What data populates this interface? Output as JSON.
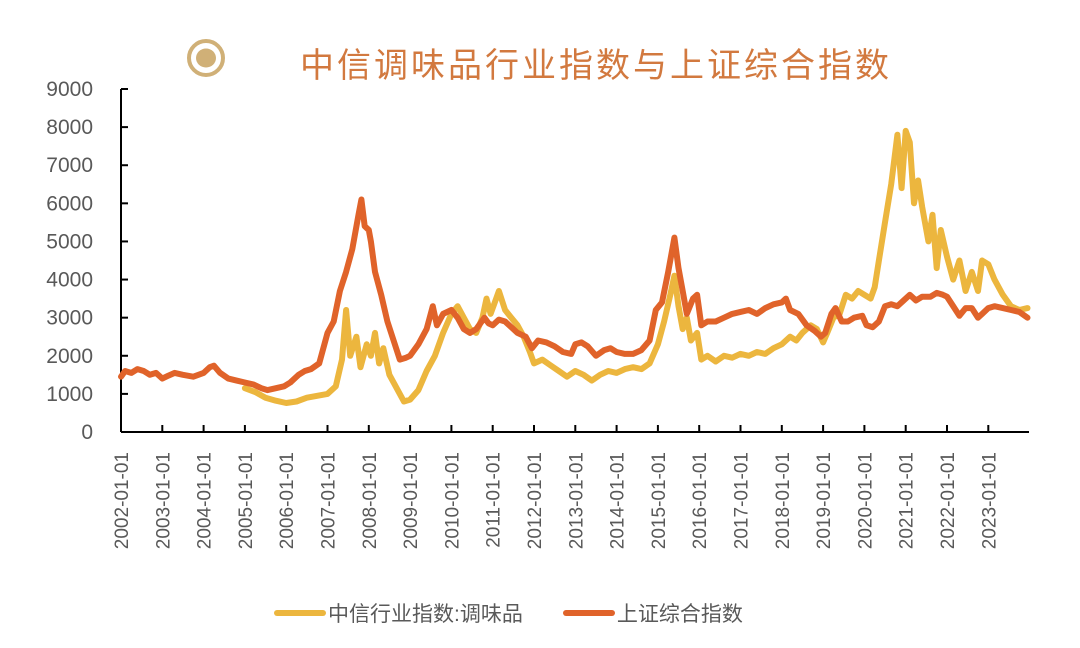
{
  "title": {
    "icon": "target-circle-icon",
    "text": "中信调味品行业指数与上证综合指数",
    "icon_color": "#d0b077",
    "text_color": "#d2793f"
  },
  "legend": {
    "items": [
      {
        "label": "中信行业指数:调味品",
        "color": "#ecb63e"
      },
      {
        "label": "上证综合指数",
        "color": "#e0632a"
      }
    ]
  },
  "chart_data": {
    "type": "line",
    "title": "中信调味品行业指数与上证综合指数",
    "xlabel": "",
    "ylabel": "",
    "ylim": [
      0,
      9000
    ],
    "yticks": [
      0,
      1000,
      2000,
      3000,
      4000,
      5000,
      6000,
      7000,
      8000,
      9000
    ],
    "xticks": [
      "2002-01-01",
      "2003-01-01",
      "2004-01-01",
      "2005-01-01",
      "2006-01-01",
      "2007-01-01",
      "2008-01-01",
      "2009-01-01",
      "2010-01-01",
      "2011-01-01",
      "2012-01-01",
      "2013-01-01",
      "2014-01-01",
      "2015-01-01",
      "2016-01-01",
      "2017-01-01",
      "2018-01-01",
      "2019-01-01",
      "2020-01-01",
      "2021-01-01",
      "2022-01-01",
      "2023-01-01"
    ],
    "xrange": [
      2002.0,
      2023.98
    ],
    "grid": false,
    "legend_position": "bottom",
    "series": [
      {
        "name": "中信行业指数:调味品",
        "color": "#ecb63e",
        "points": [
          [
            2005.0,
            1150
          ],
          [
            2005.25,
            1050
          ],
          [
            2005.5,
            900
          ],
          [
            2005.75,
            820
          ],
          [
            2006.0,
            760
          ],
          [
            2006.25,
            800
          ],
          [
            2006.5,
            900
          ],
          [
            2006.75,
            950
          ],
          [
            2007.0,
            1000
          ],
          [
            2007.2,
            1200
          ],
          [
            2007.35,
            1900
          ],
          [
            2007.45,
            3200
          ],
          [
            2007.55,
            2000
          ],
          [
            2007.7,
            2500
          ],
          [
            2007.8,
            1700
          ],
          [
            2007.95,
            2300
          ],
          [
            2008.05,
            2000
          ],
          [
            2008.15,
            2600
          ],
          [
            2008.25,
            1800
          ],
          [
            2008.35,
            2200
          ],
          [
            2008.5,
            1500
          ],
          [
            2008.7,
            1100
          ],
          [
            2008.85,
            800
          ],
          [
            2009.0,
            850
          ],
          [
            2009.2,
            1100
          ],
          [
            2009.4,
            1600
          ],
          [
            2009.6,
            2000
          ],
          [
            2009.8,
            2600
          ],
          [
            2010.0,
            3100
          ],
          [
            2010.15,
            3300
          ],
          [
            2010.3,
            3000
          ],
          [
            2010.45,
            2700
          ],
          [
            2010.6,
            2600
          ],
          [
            2010.75,
            3000
          ],
          [
            2010.85,
            3500
          ],
          [
            2010.95,
            3100
          ],
          [
            2011.05,
            3400
          ],
          [
            2011.15,
            3700
          ],
          [
            2011.3,
            3200
          ],
          [
            2011.45,
            3000
          ],
          [
            2011.6,
            2800
          ],
          [
            2011.75,
            2500
          ],
          [
            2011.9,
            2100
          ],
          [
            2012.0,
            1800
          ],
          [
            2012.2,
            1900
          ],
          [
            2012.4,
            1750
          ],
          [
            2012.6,
            1600
          ],
          [
            2012.8,
            1450
          ],
          [
            2013.0,
            1600
          ],
          [
            2013.2,
            1500
          ],
          [
            2013.4,
            1350
          ],
          [
            2013.6,
            1500
          ],
          [
            2013.8,
            1600
          ],
          [
            2014.0,
            1550
          ],
          [
            2014.2,
            1650
          ],
          [
            2014.4,
            1700
          ],
          [
            2014.6,
            1650
          ],
          [
            2014.8,
            1800
          ],
          [
            2015.0,
            2300
          ],
          [
            2015.15,
            2900
          ],
          [
            2015.3,
            3600
          ],
          [
            2015.4,
            4100
          ],
          [
            2015.5,
            3300
          ],
          [
            2015.6,
            2700
          ],
          [
            2015.7,
            3000
          ],
          [
            2015.8,
            2400
          ],
          [
            2015.95,
            2600
          ],
          [
            2016.05,
            1900
          ],
          [
            2016.2,
            2000
          ],
          [
            2016.4,
            1850
          ],
          [
            2016.6,
            2000
          ],
          [
            2016.8,
            1950
          ],
          [
            2017.0,
            2050
          ],
          [
            2017.2,
            2000
          ],
          [
            2017.4,
            2100
          ],
          [
            2017.6,
            2050
          ],
          [
            2017.8,
            2200
          ],
          [
            2018.0,
            2300
          ],
          [
            2018.2,
            2500
          ],
          [
            2018.35,
            2400
          ],
          [
            2018.5,
            2600
          ],
          [
            2018.7,
            2800
          ],
          [
            2018.85,
            2700
          ],
          [
            2019.0,
            2350
          ],
          [
            2019.1,
            2600
          ],
          [
            2019.25,
            3000
          ],
          [
            2019.4,
            3100
          ],
          [
            2019.55,
            3600
          ],
          [
            2019.7,
            3500
          ],
          [
            2019.85,
            3700
          ],
          [
            2020.0,
            3600
          ],
          [
            2020.15,
            3500
          ],
          [
            2020.25,
            3800
          ],
          [
            2020.35,
            4500
          ],
          [
            2020.5,
            5500
          ],
          [
            2020.65,
            6500
          ],
          [
            2020.8,
            7800
          ],
          [
            2020.9,
            6400
          ],
          [
            2021.0,
            7900
          ],
          [
            2021.1,
            7600
          ],
          [
            2021.2,
            6000
          ],
          [
            2021.3,
            6600
          ],
          [
            2021.4,
            5900
          ],
          [
            2021.55,
            5000
          ],
          [
            2021.65,
            5700
          ],
          [
            2021.75,
            4300
          ],
          [
            2021.85,
            5300
          ],
          [
            2022.0,
            4600
          ],
          [
            2022.15,
            4000
          ],
          [
            2022.3,
            4500
          ],
          [
            2022.45,
            3700
          ],
          [
            2022.6,
            4200
          ],
          [
            2022.75,
            3700
          ],
          [
            2022.85,
            4500
          ],
          [
            2023.0,
            4400
          ],
          [
            2023.15,
            4000
          ],
          [
            2023.35,
            3600
          ],
          [
            2023.55,
            3300
          ],
          [
            2023.75,
            3200
          ],
          [
            2023.95,
            3250
          ]
        ]
      },
      {
        "name": "上证综合指数",
        "color": "#e0632a",
        "points": [
          [
            2002.0,
            1450
          ],
          [
            2002.1,
            1600
          ],
          [
            2002.25,
            1550
          ],
          [
            2002.4,
            1650
          ],
          [
            2002.55,
            1600
          ],
          [
            2002.7,
            1500
          ],
          [
            2002.85,
            1550
          ],
          [
            2003.0,
            1400
          ],
          [
            2003.15,
            1480
          ],
          [
            2003.3,
            1550
          ],
          [
            2003.5,
            1500
          ],
          [
            2003.75,
            1450
          ],
          [
            2004.0,
            1550
          ],
          [
            2004.15,
            1700
          ],
          [
            2004.25,
            1740
          ],
          [
            2004.4,
            1550
          ],
          [
            2004.6,
            1400
          ],
          [
            2004.8,
            1350
          ],
          [
            2005.0,
            1300
          ],
          [
            2005.2,
            1250
          ],
          [
            2005.4,
            1150
          ],
          [
            2005.55,
            1100
          ],
          [
            2005.75,
            1150
          ],
          [
            2005.95,
            1200
          ],
          [
            2006.1,
            1300
          ],
          [
            2006.3,
            1500
          ],
          [
            2006.45,
            1600
          ],
          [
            2006.6,
            1650
          ],
          [
            2006.8,
            1800
          ],
          [
            2007.0,
            2600
          ],
          [
            2007.15,
            2900
          ],
          [
            2007.3,
            3700
          ],
          [
            2007.45,
            4200
          ],
          [
            2007.6,
            4800
          ],
          [
            2007.75,
            5700
          ],
          [
            2007.82,
            6100
          ],
          [
            2007.9,
            5400
          ],
          [
            2008.0,
            5300
          ],
          [
            2008.05,
            5000
          ],
          [
            2008.15,
            4200
          ],
          [
            2008.3,
            3600
          ],
          [
            2008.45,
            2900
          ],
          [
            2008.6,
            2400
          ],
          [
            2008.75,
            1900
          ],
          [
            2008.9,
            1950
          ],
          [
            2009.0,
            2000
          ],
          [
            2009.2,
            2300
          ],
          [
            2009.4,
            2700
          ],
          [
            2009.55,
            3300
          ],
          [
            2009.65,
            2800
          ],
          [
            2009.8,
            3100
          ],
          [
            2010.0,
            3200
          ],
          [
            2010.15,
            3000
          ],
          [
            2010.3,
            2700
          ],
          [
            2010.45,
            2600
          ],
          [
            2010.6,
            2700
          ],
          [
            2010.8,
            3000
          ],
          [
            2010.9,
            2850
          ],
          [
            2011.0,
            2800
          ],
          [
            2011.15,
            2950
          ],
          [
            2011.3,
            2900
          ],
          [
            2011.45,
            2750
          ],
          [
            2011.6,
            2600
          ],
          [
            2011.8,
            2500
          ],
          [
            2011.95,
            2200
          ],
          [
            2012.1,
            2400
          ],
          [
            2012.3,
            2350
          ],
          [
            2012.5,
            2250
          ],
          [
            2012.7,
            2100
          ],
          [
            2012.9,
            2050
          ],
          [
            2013.0,
            2300
          ],
          [
            2013.15,
            2350
          ],
          [
            2013.3,
            2250
          ],
          [
            2013.5,
            2000
          ],
          [
            2013.7,
            2150
          ],
          [
            2013.85,
            2200
          ],
          [
            2014.0,
            2100
          ],
          [
            2014.2,
            2050
          ],
          [
            2014.4,
            2050
          ],
          [
            2014.6,
            2150
          ],
          [
            2014.8,
            2400
          ],
          [
            2014.95,
            3200
          ],
          [
            2015.1,
            3400
          ],
          [
            2015.25,
            4200
          ],
          [
            2015.4,
            5100
          ],
          [
            2015.5,
            4300
          ],
          [
            2015.6,
            3700
          ],
          [
            2015.7,
            3100
          ],
          [
            2015.85,
            3500
          ],
          [
            2015.95,
            3600
          ],
          [
            2016.05,
            2800
          ],
          [
            2016.2,
            2900
          ],
          [
            2016.4,
            2900
          ],
          [
            2016.6,
            3000
          ],
          [
            2016.8,
            3100
          ],
          [
            2017.0,
            3150
          ],
          [
            2017.2,
            3200
          ],
          [
            2017.4,
            3100
          ],
          [
            2017.6,
            3250
          ],
          [
            2017.8,
            3350
          ],
          [
            2018.0,
            3400
          ],
          [
            2018.1,
            3500
          ],
          [
            2018.2,
            3200
          ],
          [
            2018.4,
            3100
          ],
          [
            2018.6,
            2800
          ],
          [
            2018.8,
            2650
          ],
          [
            2018.95,
            2500
          ],
          [
            2019.05,
            2600
          ],
          [
            2019.2,
            3100
          ],
          [
            2019.3,
            3250
          ],
          [
            2019.45,
            2900
          ],
          [
            2019.6,
            2900
          ],
          [
            2019.75,
            3000
          ],
          [
            2019.95,
            3050
          ],
          [
            2020.05,
            2800
          ],
          [
            2020.2,
            2750
          ],
          [
            2020.35,
            2900
          ],
          [
            2020.5,
            3300
          ],
          [
            2020.65,
            3350
          ],
          [
            2020.8,
            3300
          ],
          [
            2020.95,
            3450
          ],
          [
            2021.1,
            3600
          ],
          [
            2021.25,
            3450
          ],
          [
            2021.4,
            3550
          ],
          [
            2021.6,
            3550
          ],
          [
            2021.75,
            3650
          ],
          [
            2021.9,
            3600
          ],
          [
            2022.0,
            3550
          ],
          [
            2022.15,
            3300
          ],
          [
            2022.3,
            3050
          ],
          [
            2022.45,
            3250
          ],
          [
            2022.6,
            3250
          ],
          [
            2022.75,
            3000
          ],
          [
            2022.85,
            3100
          ],
          [
            2023.0,
            3250
          ],
          [
            2023.15,
            3300
          ],
          [
            2023.35,
            3250
          ],
          [
            2023.55,
            3200
          ],
          [
            2023.75,
            3150
          ],
          [
            2023.95,
            3000
          ]
        ]
      }
    ]
  }
}
